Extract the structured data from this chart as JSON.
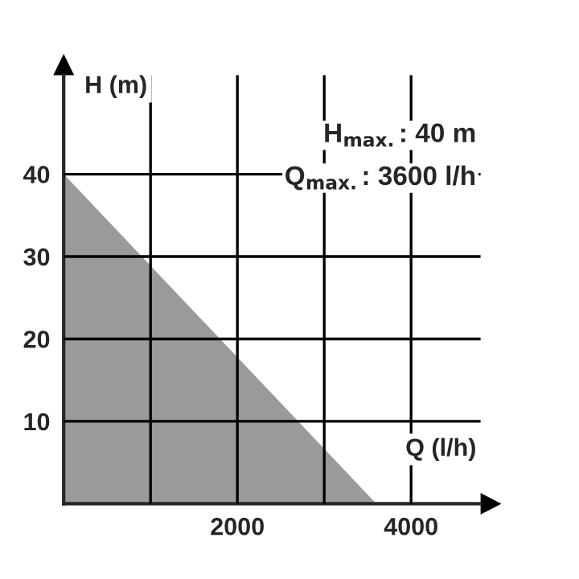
{
  "chart_data": {
    "type": "area",
    "xlabel": "Q (l/h)",
    "ylabel": "H (m)",
    "x": [
      0,
      3600
    ],
    "series": [
      {
        "color": "#9a9a9a",
        "values": [
          40,
          0
        ]
      }
    ],
    "xlim": [
      0,
      4800
    ],
    "ylim": [
      0,
      52
    ],
    "xticks": [
      {
        "value": 1000,
        "label": null
      },
      2000,
      {
        "value": 3000,
        "label": null
      },
      4000
    ],
    "yticks": [
      10,
      20,
      30,
      40
    ],
    "grid": true,
    "annotations": [
      "H$_{max.}$: 40 m",
      "Q$_{max.}$: 3600 l/h"
    ]
  }
}
